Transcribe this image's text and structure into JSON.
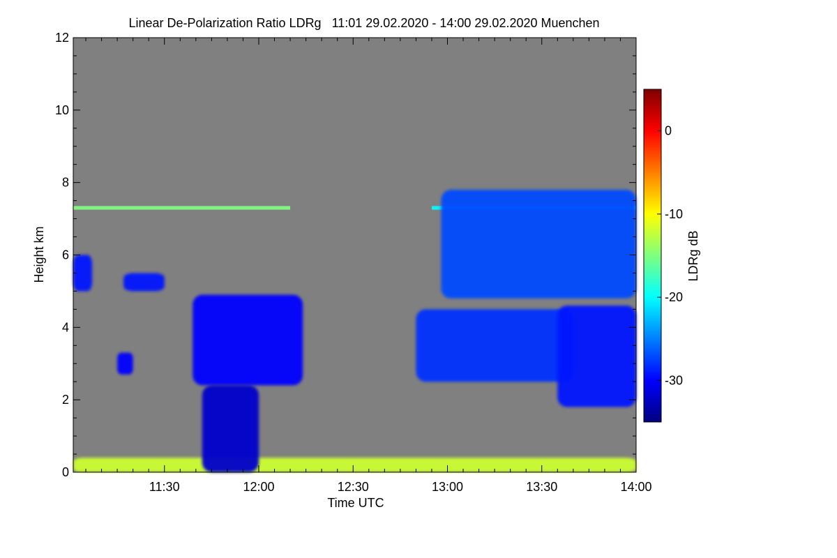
{
  "chart_data": {
    "type": "heatmap",
    "title": "Linear De-Polarization Ratio LDRg   11:01 29.02.2020 - 14:00 29.02.2020 Muenchen",
    "xlabel": "Time UTC",
    "ylabel": "Height km",
    "x_range": [
      "11:01",
      "14:00"
    ],
    "x_ticks": [
      "11:30",
      "12:00",
      "12:30",
      "13:00",
      "13:30",
      "14:00"
    ],
    "ylim": [
      0,
      12
    ],
    "y_ticks": [
      "0",
      "2",
      "4",
      "6",
      "8",
      "10",
      "12"
    ],
    "colorbar": {
      "label": "LDRg dB",
      "range": [
        -35,
        5
      ],
      "ticks": [
        "0",
        "-10",
        "-20",
        "-30"
      ],
      "colors": [
        "#00007f",
        "#0000ff",
        "#007fff",
        "#00ffff",
        "#7fff7f",
        "#ffff00",
        "#ff7f00",
        "#ff0000",
        "#7f0000"
      ]
    },
    "background_color": "#808080",
    "features": [
      {
        "name": "noise layer near ground",
        "time": [
          "11:01",
          "14:00"
        ],
        "height_km": [
          0.0,
          0.4
        ],
        "ldr_db": -12
      },
      {
        "name": "thin layer",
        "time": [
          "11:01",
          "12:10"
        ],
        "height_km": [
          7.25,
          7.35
        ],
        "ldr_db": -15
      },
      {
        "name": "thin layer",
        "time": [
          "12:55",
          "14:00"
        ],
        "height_km": [
          7.25,
          7.35
        ],
        "ldr_db": -20
      },
      {
        "name": "cloud",
        "time": [
          "11:01",
          "11:07"
        ],
        "height_km": [
          5.0,
          6.0
        ],
        "ldr_db": -29
      },
      {
        "name": "cloud",
        "time": [
          "11:17",
          "11:30"
        ],
        "height_km": [
          5.0,
          5.5
        ],
        "ldr_db": -29
      },
      {
        "name": "cloud",
        "time": [
          "11:15",
          "11:20"
        ],
        "height_km": [
          2.7,
          3.3
        ],
        "ldr_db": -30
      },
      {
        "name": "cloud",
        "time": [
          "11:39",
          "12:14"
        ],
        "height_km": [
          2.4,
          4.9
        ],
        "ldr_db": -30
      },
      {
        "name": "fall streaks",
        "time": [
          "11:42",
          "12:00"
        ],
        "height_km": [
          0.0,
          2.4
        ],
        "ldr_db": -32
      },
      {
        "name": "cloud",
        "time": [
          "12:50",
          "13:40"
        ],
        "height_km": [
          2.5,
          4.5
        ],
        "ldr_db": -28
      },
      {
        "name": "cloud",
        "time": [
          "13:35",
          "14:00"
        ],
        "height_km": [
          1.8,
          4.6
        ],
        "ldr_db": -29
      },
      {
        "name": "cloud",
        "time": [
          "12:58",
          "14:00"
        ],
        "height_km": [
          4.8,
          7.8
        ],
        "ldr_db": -27
      }
    ]
  }
}
